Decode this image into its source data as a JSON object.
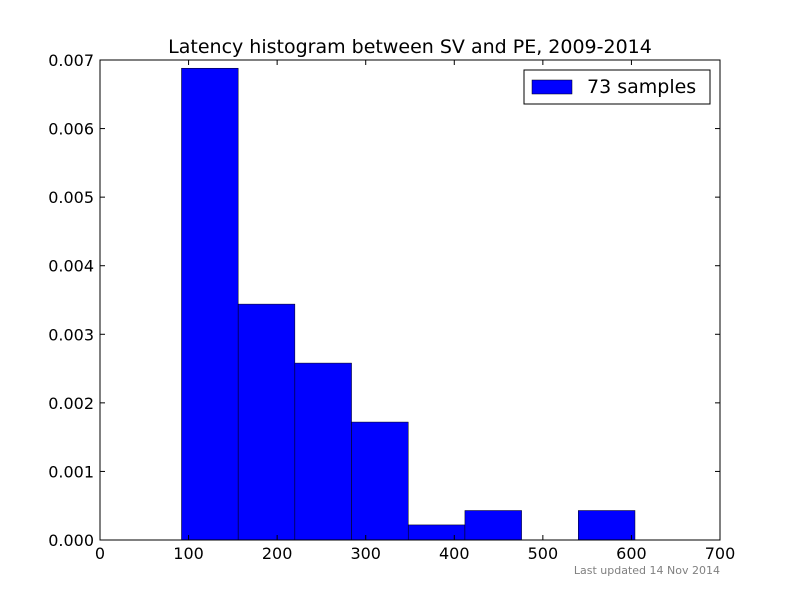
{
  "chart_data": {
    "type": "bar",
    "title": "Latency histogram between SV and PE, 2009-2014",
    "xlabel": "",
    "ylabel": "",
    "xlim": [
      0,
      700
    ],
    "ylim": [
      0,
      0.007
    ],
    "xticks": [
      "0",
      "100",
      "200",
      "300",
      "400",
      "500",
      "600",
      "700"
    ],
    "yticks": [
      "0.000",
      "0.001",
      "0.002",
      "0.003",
      "0.004",
      "0.005",
      "0.006",
      "0.007"
    ],
    "bins": [
      {
        "x0": 92,
        "x1": 156,
        "value": 0.00688
      },
      {
        "x0": 156,
        "x1": 220,
        "value": 0.00344
      },
      {
        "x0": 220,
        "x1": 284,
        "value": 0.00258
      },
      {
        "x0": 284,
        "x1": 348,
        "value": 0.00172
      },
      {
        "x0": 348,
        "x1": 412,
        "value": 0.00022
      },
      {
        "x0": 412,
        "x1": 476,
        "value": 0.00043
      },
      {
        "x0": 476,
        "x1": 540,
        "value": 0.0
      },
      {
        "x0": 540,
        "x1": 604,
        "value": 0.00043
      }
    ],
    "bar_color": "#0000ff",
    "legend": {
      "label": "73 samples",
      "position": "top-right"
    },
    "grid": false
  },
  "footnote": "Last updated 14 Nov 2014"
}
